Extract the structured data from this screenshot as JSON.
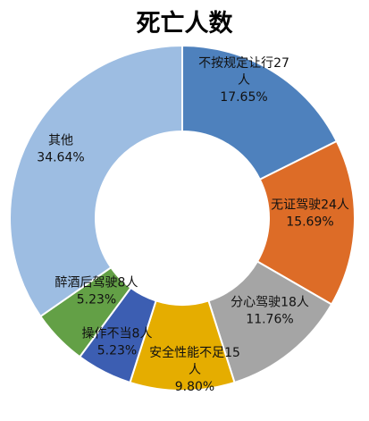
{
  "chart_data": {
    "type": "pie",
    "donut": true,
    "title": "死亡人数",
    "slices": [
      {
        "label_lines": [
          "不按规定让行27",
          "人"
        ],
        "value": 27,
        "percent_label": "17.65%",
        "color": "#4e81bd"
      },
      {
        "label_lines": [
          "无证驾驶24人"
        ],
        "value": 24,
        "percent_label": "15.69%",
        "color": "#dd6c27"
      },
      {
        "label_lines": [
          "分心驾驶18人"
        ],
        "value": 18,
        "percent_label": "11.76%",
        "color": "#a5a5a5"
      },
      {
        "label_lines": [
          "安全性能不足15",
          "人"
        ],
        "value": 15,
        "percent_label": "9.80%",
        "color": "#e5ad00"
      },
      {
        "label_lines": [
          "操作不当8人"
        ],
        "value": 8,
        "percent_label": "5.23%",
        "color": "#3c5eb2"
      },
      {
        "label_lines": [
          "醉酒后驾驶8人"
        ],
        "value": 8,
        "percent_label": "5.23%",
        "color": "#63a046"
      },
      {
        "label_lines": [
          "其他"
        ],
        "value": 53,
        "percent_label": "34.64%",
        "color": "#9dbde2"
      }
    ]
  }
}
